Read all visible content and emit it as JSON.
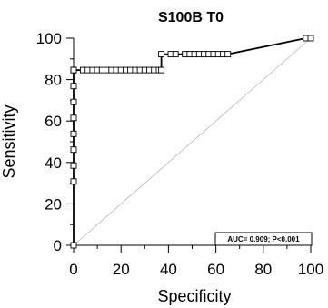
{
  "chart_data": {
    "type": "line",
    "title": "S100B T0",
    "xlabel": "Specificity",
    "ylabel": "Sensitivity",
    "xlim": [
      0,
      100
    ],
    "ylim": [
      0,
      100
    ],
    "xticks": [
      "0",
      "20",
      "40",
      "60",
      "80",
      "100"
    ],
    "yticks": [
      "0",
      "20",
      "40",
      "60",
      "80",
      "100"
    ],
    "annotation": "AUC= 0.909; P<0.001",
    "reference_line": true,
    "series": [
      {
        "x": [
          0,
          0,
          0,
          0,
          0,
          0,
          0,
          0,
          0,
          0,
          0,
          0,
          4,
          6,
          8,
          10,
          12,
          14,
          16,
          18,
          20,
          22,
          24,
          26,
          28,
          30,
          32,
          34,
          36,
          37,
          37,
          41,
          43,
          47,
          49,
          51,
          53,
          55,
          57,
          59,
          61,
          63,
          65,
          98,
          100
        ],
        "y": [
          0,
          30.8,
          38.5,
          46.2,
          53.8,
          61.5,
          69.2,
          76.9,
          84.6,
          84.6,
          84.6,
          84.6,
          84.6,
          84.6,
          84.6,
          84.6,
          84.6,
          84.6,
          84.6,
          84.6,
          84.6,
          84.6,
          84.6,
          84.6,
          84.6,
          84.6,
          84.6,
          84.6,
          84.6,
          84.6,
          92.3,
          92.3,
          92.3,
          92.3,
          92.3,
          92.3,
          92.3,
          92.3,
          92.3,
          92.3,
          92.3,
          92.3,
          92.3,
          100,
          100
        ]
      }
    ]
  }
}
